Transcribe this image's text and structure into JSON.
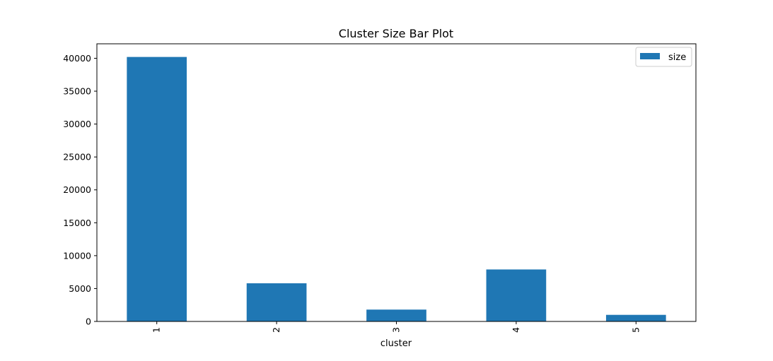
{
  "chart_data": {
    "type": "bar",
    "title": "Cluster Size Bar Plot",
    "xlabel": "cluster",
    "ylabel": "",
    "categories": [
      "1",
      "2",
      "3",
      "4",
      "5"
    ],
    "series": [
      {
        "name": "size",
        "values": [
          40200,
          5800,
          1800,
          7900,
          1000
        ],
        "color": "#1f77b4"
      }
    ],
    "ylim": [
      0,
      42200
    ],
    "yticks": [
      0,
      5000,
      10000,
      15000,
      20000,
      25000,
      30000,
      35000,
      40000
    ],
    "ytick_labels": [
      "0",
      "5000",
      "10000",
      "15000",
      "20000",
      "25000",
      "30000",
      "35000",
      "40000"
    ],
    "xtick_rotation": "vertical",
    "grid": false,
    "legend": {
      "position": "upper-right",
      "entries": [
        "size"
      ]
    }
  }
}
